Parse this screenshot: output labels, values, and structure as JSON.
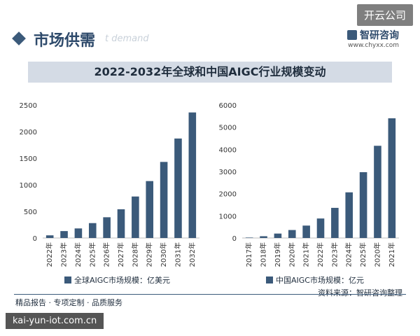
{
  "badge": "开云公司",
  "header": {
    "section_title": "市场供需",
    "watermark_en": "t demand",
    "brand_name": "智研咨询",
    "brand_site": "www.chyxx.com"
  },
  "title": "2022-2032年全球和中国AIGC行业规模变动",
  "footer": {
    "tagline": "精品报告 · 专项定制 · 品质服务",
    "source": "资料来源：智研咨询整理",
    "url": "kai-yun-iot.com.cn"
  },
  "colors": {
    "bar": "#3b5a7a",
    "title_bar": "#d4dbe5",
    "axis": "#bfbfbf"
  },
  "chart_data": [
    {
      "type": "bar",
      "categories": [
        "2022年",
        "2023年",
        "2024年",
        "2025年",
        "2026年",
        "2027年",
        "2028年",
        "2029年",
        "2030年",
        "2031年",
        "2032年"
      ],
      "series": [
        {
          "name": "全球AIGC市场规模：亿美元",
          "values": [
            50,
            130,
            180,
            280,
            390,
            540,
            780,
            1070,
            1430,
            1870,
            2360
          ]
        }
      ],
      "ylim": [
        0,
        2500
      ],
      "yticks": [
        0,
        500,
        1000,
        1500,
        2000,
        2500
      ]
    },
    {
      "type": "bar",
      "categories": [
        "2017年",
        "2018年",
        "2019年",
        "2020年",
        "2021年",
        "2022年",
        "2023年",
        "2024年",
        "2025年",
        "2020年",
        "2021年"
      ],
      "series": [
        {
          "name": "中国AIGC市场规模：亿元",
          "values": [
            20,
            80,
            200,
            360,
            560,
            880,
            1360,
            2060,
            2970,
            4160,
            5400
          ]
        }
      ],
      "ylim": [
        0,
        6000
      ],
      "yticks": [
        0,
        1000,
        2000,
        3000,
        4000,
        5000,
        6000
      ]
    }
  ]
}
